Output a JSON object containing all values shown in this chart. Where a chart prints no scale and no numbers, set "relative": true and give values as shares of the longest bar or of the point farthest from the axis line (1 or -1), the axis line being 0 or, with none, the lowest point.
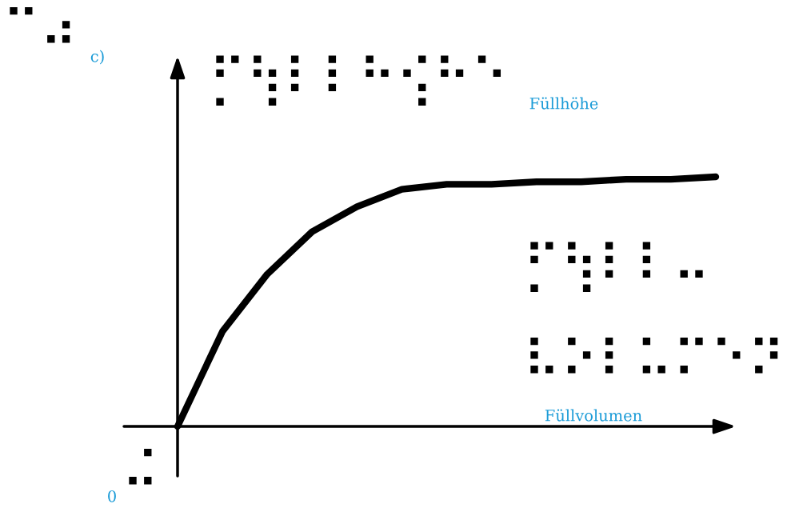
{
  "chart_data": {
    "type": "line",
    "relative": true,
    "xlabel": "Füllvolumen",
    "ylabel": "Füllhöhe",
    "categories": [
      null,
      null,
      null,
      null,
      null,
      null,
      null,
      null,
      null,
      null,
      null,
      null,
      null
    ],
    "series": [
      {
        "color": "#000000",
        "values": [
          0,
          0.38,
          0.61,
          0.78,
          0.88,
          0.95,
          0.97,
          0.97,
          0.98,
          0.98,
          0.99,
          0.99,
          1.0
        ]
      }
    ],
    "line_style": "solid",
    "marker": "none",
    "legend": false,
    "tick_labels": false,
    "annotations": [
      "c)",
      "⠉⠴",
      "⡋⢳⠇⠇⠓⢪⠓⠑",
      "⡋⢳⠇⠇⠤",
      "⠧⠕⠇⠥⠍⠑⠝",
      "0",
      "⠬"
    ]
  }
}
